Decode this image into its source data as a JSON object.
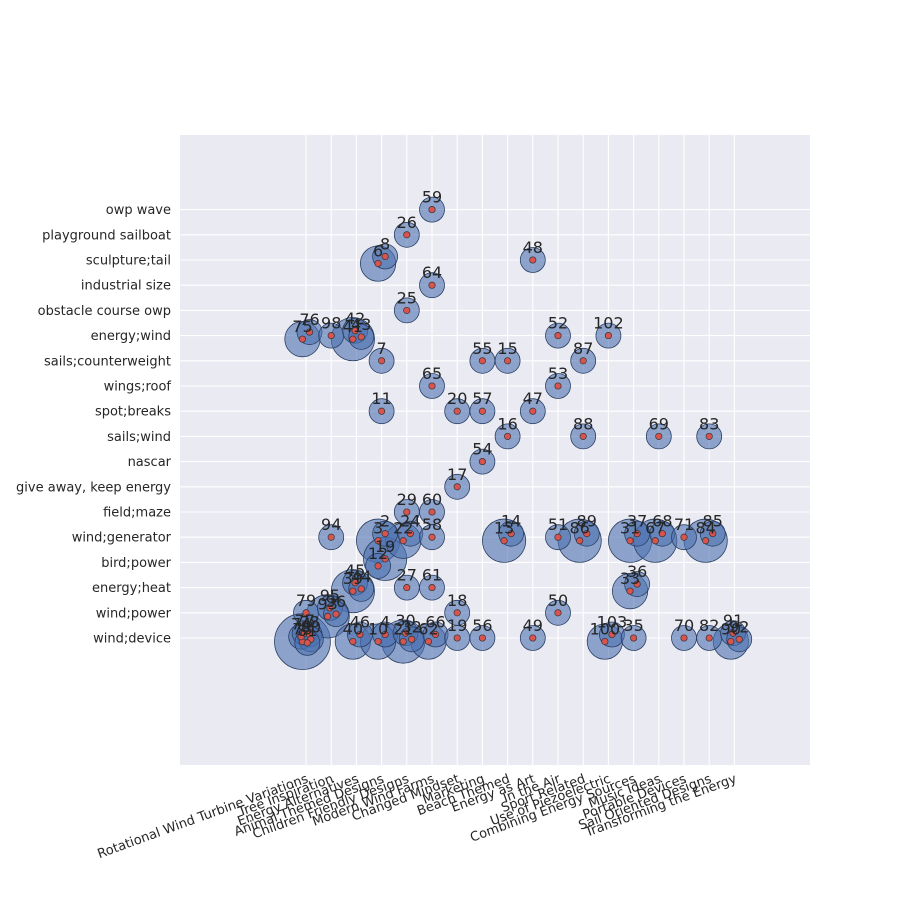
{
  "chart_data": {
    "type": "scatter",
    "title": "",
    "xlabel": "",
    "ylabel": "",
    "grid": true,
    "x_categories": [
      "Rotational Wind Turbine Variations",
      "Tree Inspiration",
      "Energy Alternatives",
      "Animal Themed Designs",
      "Children Friendly Designs",
      "Modern Wind Farms",
      "Changed Mindset",
      "Marketing",
      "Beach Themed",
      "Energy as Art",
      "In the Air",
      "Sport Related",
      "Use of Piezoelectric",
      "Combining Energy Sources",
      "Music Ideas",
      "Portable Devices",
      "Sail Oriented Designs",
      "Transforming the Energy"
    ],
    "y_categories": [
      "wind;device",
      "wind;power",
      "energy;heat",
      "bird;power",
      "wind;generator",
      "field;maze",
      "give away, keep energy",
      "nascar",
      "sails;wind",
      "spot;breaks",
      "wings;roof",
      "sails;counterweight",
      "energy;wind",
      "obstacle course owp",
      "industrial size",
      "sculpture;tail",
      "playground sailboat",
      "owp wave"
    ],
    "points": [
      {
        "label": "59",
        "x": 5,
        "y": 17,
        "size": 1
      },
      {
        "label": "26",
        "x": 4,
        "y": 16,
        "size": 1
      },
      {
        "label": "6",
        "x": 3,
        "y": 15,
        "size": 2
      },
      {
        "label": "8",
        "x": 3,
        "y": 15,
        "size": 1
      },
      {
        "label": "48",
        "x": 9,
        "y": 15,
        "size": 1
      },
      {
        "label": "64",
        "x": 5,
        "y": 14,
        "size": 1
      },
      {
        "label": "25",
        "x": 4,
        "y": 13,
        "size": 1
      },
      {
        "label": "75",
        "x": 0,
        "y": 12,
        "size": 2
      },
      {
        "label": "76",
        "x": 0,
        "y": 12,
        "size": 1
      },
      {
        "label": "98",
        "x": 1,
        "y": 12,
        "size": 1
      },
      {
        "label": "41",
        "x": 2,
        "y": 12,
        "size": 3
      },
      {
        "label": "42",
        "x": 2,
        "y": 12,
        "size": 1
      },
      {
        "label": "43",
        "x": 2,
        "y": 12,
        "size": 1
      },
      {
        "label": "52",
        "x": 10,
        "y": 12,
        "size": 1
      },
      {
        "label": "102",
        "x": 12,
        "y": 12,
        "size": 1
      },
      {
        "label": "7",
        "x": 3,
        "y": 11,
        "size": 1
      },
      {
        "label": "55",
        "x": 7,
        "y": 11,
        "size": 1
      },
      {
        "label": "15",
        "x": 8,
        "y": 11,
        "size": 1
      },
      {
        "label": "87",
        "x": 11,
        "y": 11,
        "size": 1
      },
      {
        "label": "65",
        "x": 5,
        "y": 10,
        "size": 1
      },
      {
        "label": "53",
        "x": 10,
        "y": 10,
        "size": 1
      },
      {
        "label": "11",
        "x": 3,
        "y": 9,
        "size": 1
      },
      {
        "label": "20",
        "x": 6,
        "y": 9,
        "size": 1
      },
      {
        "label": "57",
        "x": 7,
        "y": 9,
        "size": 1
      },
      {
        "label": "47",
        "x": 9,
        "y": 9,
        "size": 1
      },
      {
        "label": "16",
        "x": 8,
        "y": 8,
        "size": 1
      },
      {
        "label": "88",
        "x": 11,
        "y": 8,
        "size": 1
      },
      {
        "label": "69",
        "x": 14,
        "y": 8,
        "size": 1
      },
      {
        "label": "83",
        "x": 16,
        "y": 8,
        "size": 1
      },
      {
        "label": "54",
        "x": 7,
        "y": 7,
        "size": 1
      },
      {
        "label": "17",
        "x": 6,
        "y": 6,
        "size": 1
      },
      {
        "label": "29",
        "x": 4,
        "y": 5,
        "size": 1
      },
      {
        "label": "60",
        "x": 5,
        "y": 5,
        "size": 1
      },
      {
        "label": "94",
        "x": 1,
        "y": 4,
        "size": 1
      },
      {
        "label": "3",
        "x": 3,
        "y": 4,
        "size": 3
      },
      {
        "label": "2",
        "x": 3,
        "y": 4,
        "size": 1
      },
      {
        "label": "22",
        "x": 4,
        "y": 4,
        "size": 2
      },
      {
        "label": "24",
        "x": 4,
        "y": 4,
        "size": 1
      },
      {
        "label": "58",
        "x": 5,
        "y": 4,
        "size": 1
      },
      {
        "label": "13",
        "x": 8,
        "y": 4,
        "size": 3
      },
      {
        "label": "14",
        "x": 8,
        "y": 4,
        "size": 1
      },
      {
        "label": "51",
        "x": 10,
        "y": 4,
        "size": 1
      },
      {
        "label": "86",
        "x": 11,
        "y": 4,
        "size": 3
      },
      {
        "label": "89",
        "x": 11,
        "y": 4,
        "size": 1
      },
      {
        "label": "31",
        "x": 13,
        "y": 4,
        "size": 3
      },
      {
        "label": "37",
        "x": 13,
        "y": 4,
        "size": 1
      },
      {
        "label": "67",
        "x": 14,
        "y": 4,
        "size": 3
      },
      {
        "label": "68",
        "x": 14,
        "y": 4,
        "size": 1
      },
      {
        "label": "71",
        "x": 15,
        "y": 4,
        "size": 1
      },
      {
        "label": "84",
        "x": 16,
        "y": 4,
        "size": 3
      },
      {
        "label": "85",
        "x": 16,
        "y": 4,
        "size": 1
      },
      {
        "label": "12",
        "x": 3,
        "y": 3,
        "size": 1
      },
      {
        "label": "19",
        "x": 3,
        "y": 3,
        "size": 3
      },
      {
        "label": "39",
        "x": 2,
        "y": 2,
        "size": 3
      },
      {
        "label": "45",
        "x": 2,
        "y": 2,
        "size": 1
      },
      {
        "label": "44",
        "x": 2,
        "y": 2,
        "size": 1
      },
      {
        "label": "27",
        "x": 4,
        "y": 2,
        "size": 1
      },
      {
        "label": "61",
        "x": 5,
        "y": 2,
        "size": 1
      },
      {
        "label": "33",
        "x": 13,
        "y": 2,
        "size": 2
      },
      {
        "label": "36",
        "x": 13,
        "y": 2,
        "size": 1
      },
      {
        "label": "79",
        "x": 0,
        "y": 1,
        "size": 1
      },
      {
        "label": "93",
        "x": 1,
        "y": 1,
        "size": 3
      },
      {
        "label": "95",
        "x": 1,
        "y": 1,
        "size": 1
      },
      {
        "label": "96",
        "x": 1,
        "y": 1,
        "size": 1
      },
      {
        "label": "18",
        "x": 6,
        "y": 1,
        "size": 1
      },
      {
        "label": "50",
        "x": 10,
        "y": 1,
        "size": 1
      },
      {
        "label": "40",
        "x": 2,
        "y": 0,
        "size": 2
      },
      {
        "label": "46",
        "x": 2,
        "y": 0,
        "size": 1
      },
      {
        "label": "10",
        "x": 3,
        "y": 0,
        "size": 2
      },
      {
        "label": "4",
        "x": 3,
        "y": 0,
        "size": 1
      },
      {
        "label": "21",
        "x": 4,
        "y": 0,
        "size": 3
      },
      {
        "label": "30",
        "x": 4,
        "y": 0,
        "size": 1
      },
      {
        "label": "32",
        "x": 4,
        "y": 0,
        "size": 1
      },
      {
        "label": "62",
        "x": 5,
        "y": 0,
        "size": 2
      },
      {
        "label": "66",
        "x": 5,
        "y": 0,
        "size": 1
      },
      {
        "label": "19",
        "x": 6,
        "y": 0,
        "size": 1
      },
      {
        "label": "56",
        "x": 7,
        "y": 0,
        "size": 1
      },
      {
        "label": "49",
        "x": 9,
        "y": 0,
        "size": 1
      },
      {
        "label": "100",
        "x": 12,
        "y": 0,
        "size": 2
      },
      {
        "label": "103",
        "x": 12,
        "y": 0,
        "size": 1
      },
      {
        "label": "35",
        "x": 13,
        "y": 0,
        "size": 1
      },
      {
        "label": "70",
        "x": 15,
        "y": 0,
        "size": 1
      },
      {
        "label": "82",
        "x": 16,
        "y": 0,
        "size": 1
      },
      {
        "label": "90",
        "x": 17,
        "y": 0,
        "size": 2
      },
      {
        "label": "91",
        "x": 17,
        "y": 0,
        "size": 1
      },
      {
        "label": "92",
        "x": 17,
        "y": 0,
        "size": 1
      },
      {
        "label": "73",
        "x": 0,
        "y": 0,
        "size": 5
      },
      {
        "label": "74",
        "x": 0,
        "y": 0,
        "size": 1
      },
      {
        "label": "77",
        "x": 0,
        "y": 0,
        "size": 1
      },
      {
        "label": "78",
        "x": 0,
        "y": 0,
        "size": 1
      },
      {
        "label": "80",
        "x": 0,
        "y": 0,
        "size": 1
      },
      {
        "label": "81",
        "x": 0,
        "y": 0,
        "size": 1
      }
    ],
    "colors": {
      "plot_background": "#eaeaf2",
      "grid": "#ffffff",
      "bubble_fill": "#4c72b0",
      "bubble_stroke": "#2a3f63",
      "point_fill": "#d9534f",
      "point_stroke": "#333333",
      "text": "#262626"
    }
  }
}
